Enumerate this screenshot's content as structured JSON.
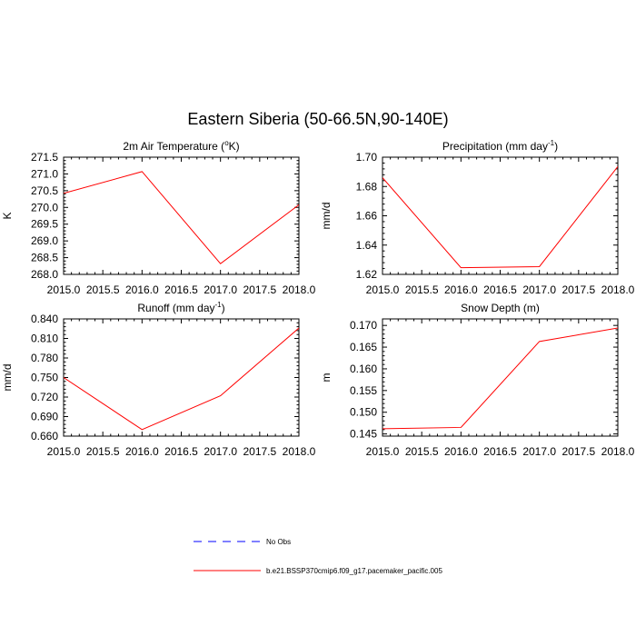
{
  "figure": {
    "title": "Eastern Siberia (50-66.5N,90-140E)"
  },
  "legend": {
    "placement": "bottom-center",
    "entries": [
      {
        "label": "No Obs",
        "color": "#0000ff",
        "dash": "dashed"
      },
      {
        "label": "b.e21.BSSP370cmip6.f09_g17.pacemaker_pacific.005",
        "color": "#ff0000",
        "dash": "solid"
      }
    ]
  },
  "chart_data": [
    {
      "type": "line",
      "title": "2m Air Temperature (°K)",
      "title_parts": {
        "main": "2m Air Temperature (",
        "sup": "o",
        "after": "K)"
      },
      "xlabel": "",
      "ylabel": "K",
      "xlim": [
        2015.0,
        2018.0
      ],
      "ylim": [
        268.0,
        271.5
      ],
      "xticks": [
        "2015.0",
        "2015.5",
        "2016.0",
        "2016.5",
        "2017.0",
        "2017.5",
        "2018.0"
      ],
      "yticks": [
        "268.0",
        "268.5",
        "269.0",
        "269.5",
        "270.0",
        "270.5",
        "271.0",
        "271.5"
      ],
      "series": [
        {
          "color": "#ff0000",
          "x": [
            2015,
            2016,
            2017,
            2018
          ],
          "y": [
            270.42,
            271.07,
            268.32,
            270.08
          ]
        }
      ]
    },
    {
      "type": "line",
      "title": "Precipitation (mm day-1)",
      "title_parts": {
        "main": "Precipitation (mm day",
        "sup": "-1",
        "after": ")"
      },
      "xlabel": "",
      "ylabel": "mm/d",
      "xlim": [
        2015.0,
        2018.0
      ],
      "ylim": [
        1.62,
        1.7
      ],
      "xticks": [
        "2015.0",
        "2015.5",
        "2016.0",
        "2016.5",
        "2017.0",
        "2017.5",
        "2018.0"
      ],
      "yticks": [
        "1.62",
        "1.64",
        "1.66",
        "1.68",
        "1.70"
      ],
      "series": [
        {
          "color": "#ff0000",
          "x": [
            2015,
            2016,
            2017,
            2018
          ],
          "y": [
            1.686,
            1.6246,
            1.6253,
            1.6936
          ]
        }
      ]
    },
    {
      "type": "line",
      "title": "Runoff (mm day-1)",
      "title_parts": {
        "main": "Runoff (mm day",
        "sup": "-1",
        "after": ")"
      },
      "xlabel": "",
      "ylabel": "mm/d",
      "xlim": [
        2015.0,
        2018.0
      ],
      "ylim": [
        0.66,
        0.84
      ],
      "xticks": [
        "2015.0",
        "2015.5",
        "2016.0",
        "2016.5",
        "2017.0",
        "2017.5",
        "2018.0"
      ],
      "yticks": [
        "0.660",
        "0.690",
        "0.720",
        "0.750",
        "0.780",
        "0.810",
        "0.840"
      ],
      "series": [
        {
          "color": "#ff0000",
          "x": [
            2015,
            2016,
            2017,
            2018
          ],
          "y": [
            0.75,
            0.67,
            0.722,
            0.826
          ]
        }
      ]
    },
    {
      "type": "line",
      "title": "Snow Depth (m)",
      "title_parts": {
        "main": "Snow Depth (m)",
        "sup": "",
        "after": ""
      },
      "xlabel": "",
      "ylabel": "m",
      "xlim": [
        2015.0,
        2018.0
      ],
      "ylim": [
        0.1445,
        0.1715
      ],
      "xticks": [
        "2015.0",
        "2015.5",
        "2016.0",
        "2016.5",
        "2017.0",
        "2017.5",
        "2018.0"
      ],
      "yticks": [
        "0.145",
        "0.150",
        "0.155",
        "0.160",
        "0.165",
        "0.170"
      ],
      "series": [
        {
          "color": "#ff0000",
          "x": [
            2015,
            2016,
            2017,
            2018
          ],
          "y": [
            0.1462,
            0.1465,
            0.1663,
            0.1694
          ]
        }
      ]
    }
  ]
}
